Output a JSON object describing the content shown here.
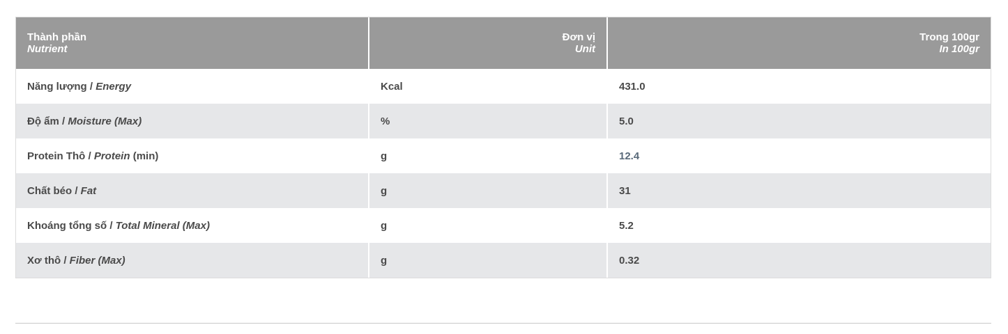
{
  "header": {
    "col1": {
      "vi": "Thành phần",
      "en": "Nutrient"
    },
    "col2": {
      "vi": "Đơn vị",
      "en": "Unit"
    },
    "col3": {
      "vi": "Trong 100gr",
      "en": "In 100gr"
    }
  },
  "rows": [
    {
      "vi": "Năng lượng / ",
      "en": "Energy",
      "suffix": "",
      "unit": "Kcal",
      "value": "431.0"
    },
    {
      "vi": "Độ ẩm / ",
      "en": "Moisture (Max)",
      "suffix": "",
      "unit": "%",
      "value": "5.0"
    },
    {
      "vi": "Protein Thô / ",
      "en": "Protein",
      "suffix": " (min)",
      "unit": "g",
      "value": "12.4"
    },
    {
      "vi": "Chất béo / ",
      "en": "Fat",
      "suffix": "",
      "unit": "g",
      "value": "31"
    },
    {
      "vi": "Khoáng tổng số / ",
      "en": "Total Mineral (Max)",
      "suffix": "",
      "unit": "g",
      "value": "5.2"
    },
    {
      "vi": "Xơ thô / ",
      "en": "Fiber (Max)",
      "suffix": "",
      "unit": "g",
      "value": "0.32"
    }
  ],
  "colors": {
    "header_bg": "#9a9a9a",
    "stripe_bg": "#e6e7e9"
  }
}
